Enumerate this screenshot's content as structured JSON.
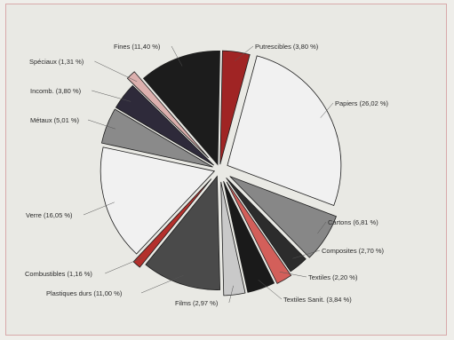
{
  "colors": {
    "background": "#e9e9e4",
    "frame": "#d8a9aa",
    "wedge_outline": "#1c1c1c"
  },
  "chart_data": {
    "type": "pie",
    "exploded": true,
    "slices": [
      {
        "label": "Putrescibles (3,80 %)",
        "value": 3.8,
        "color": "#a02424",
        "icon": "dark-red"
      },
      {
        "label": "Papiers (26,02 %)",
        "value": 26.02,
        "color": "#f1f1f1",
        "icon": "white"
      },
      {
        "label": "Cartons (6,81 %)",
        "value": 6.81,
        "color": "#878787",
        "icon": "gray"
      },
      {
        "label": "Composites (2,70 %)",
        "value": 2.7,
        "color": "#2c2c2c",
        "icon": "black"
      },
      {
        "label": "Textiles (2,20 %)",
        "value": 2.2,
        "color": "#d35f5a",
        "icon": "red"
      },
      {
        "label": "Textiles Sanit. (3,84 %)",
        "value": 3.84,
        "color": "#1a1a1a",
        "icon": "black"
      },
      {
        "label": "Films (2,97 %)",
        "value": 2.97,
        "color": "#c9c9c9",
        "icon": "light-gray"
      },
      {
        "label": "Plastiques durs (11,00 %)",
        "value": 11.0,
        "color": "#4a4a4a",
        "icon": "dark-gray"
      },
      {
        "label": "Combustibles (1,16 %)",
        "value": 1.16,
        "color": "#b3302c",
        "icon": "red"
      },
      {
        "label": "Verre (16,05 %)",
        "value": 16.05,
        "color": "#f1f1f1",
        "icon": "white"
      },
      {
        "label": "Métaux (5,01 %)",
        "value": 5.01,
        "color": "#8a8a8a",
        "icon": "gray"
      },
      {
        "label": "Incomb. (3,80 %)",
        "value": 3.8,
        "color": "#2e2a3a",
        "icon": "black"
      },
      {
        "label": "Spéciaux (1,31 %)",
        "value": 1.31,
        "color": "#dcb0ae",
        "icon": "pink"
      },
      {
        "label": "Fines (11,40 %)",
        "value": 11.4,
        "color": "#1c1c1c",
        "icon": "black"
      }
    ]
  }
}
